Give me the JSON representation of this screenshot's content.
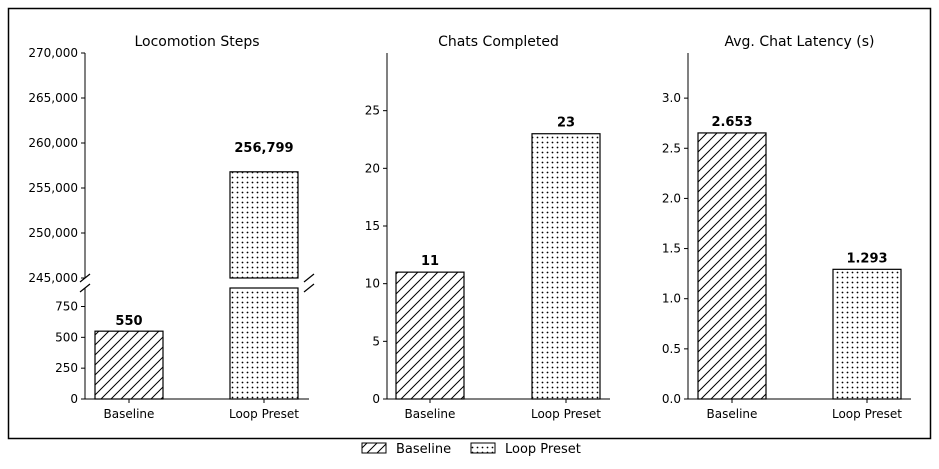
{
  "legend": [
    {
      "name": "Baseline",
      "pattern": "hatch"
    },
    {
      "name": "Loop Preset",
      "pattern": "dots"
    }
  ],
  "chart_data": [
    {
      "type": "bar",
      "title": "Locomotion Steps",
      "categories": [
        "Baseline",
        "Loop Preset"
      ],
      "values": [
        550,
        256799
      ],
      "value_labels": [
        "550",
        "256,799"
      ],
      "broken_axis": true,
      "ylim_upper": [
        245000,
        270000
      ],
      "ylim_lower": [
        0,
        900
      ],
      "upper_ticks": [
        245000,
        250000,
        255000,
        260000,
        265000,
        270000
      ],
      "upper_tick_labels": [
        "245,000",
        "250,000",
        "255,000",
        "260,000",
        "265,000",
        "270,000"
      ],
      "lower_ticks": [
        0,
        250,
        500,
        750
      ],
      "lower_tick_labels": [
        "0",
        "250",
        "500",
        "750"
      ]
    },
    {
      "type": "bar",
      "title": "Chats Completed",
      "categories": [
        "Baseline",
        "Loop Preset"
      ],
      "values": [
        11,
        23
      ],
      "value_labels": [
        "11",
        "23"
      ],
      "ylim": [
        0,
        30
      ],
      "ticks": [
        0,
        5,
        10,
        15,
        20,
        25
      ],
      "tick_labels": [
        "0",
        "5",
        "10",
        "15",
        "20",
        "25"
      ]
    },
    {
      "type": "bar",
      "title": "Avg. Chat Latency (s)",
      "categories": [
        "Baseline",
        "Loop Preset"
      ],
      "values": [
        2.653,
        1.293
      ],
      "value_labels": [
        "2.653",
        "1.293"
      ],
      "ylim": [
        0,
        3.45
      ],
      "ticks": [
        0,
        0.5,
        1.0,
        1.5,
        2.0,
        2.5,
        3.0
      ],
      "tick_labels": [
        "0.0",
        "0.5",
        "1.0",
        "1.5",
        "2.0",
        "2.5",
        "3.0"
      ]
    }
  ]
}
